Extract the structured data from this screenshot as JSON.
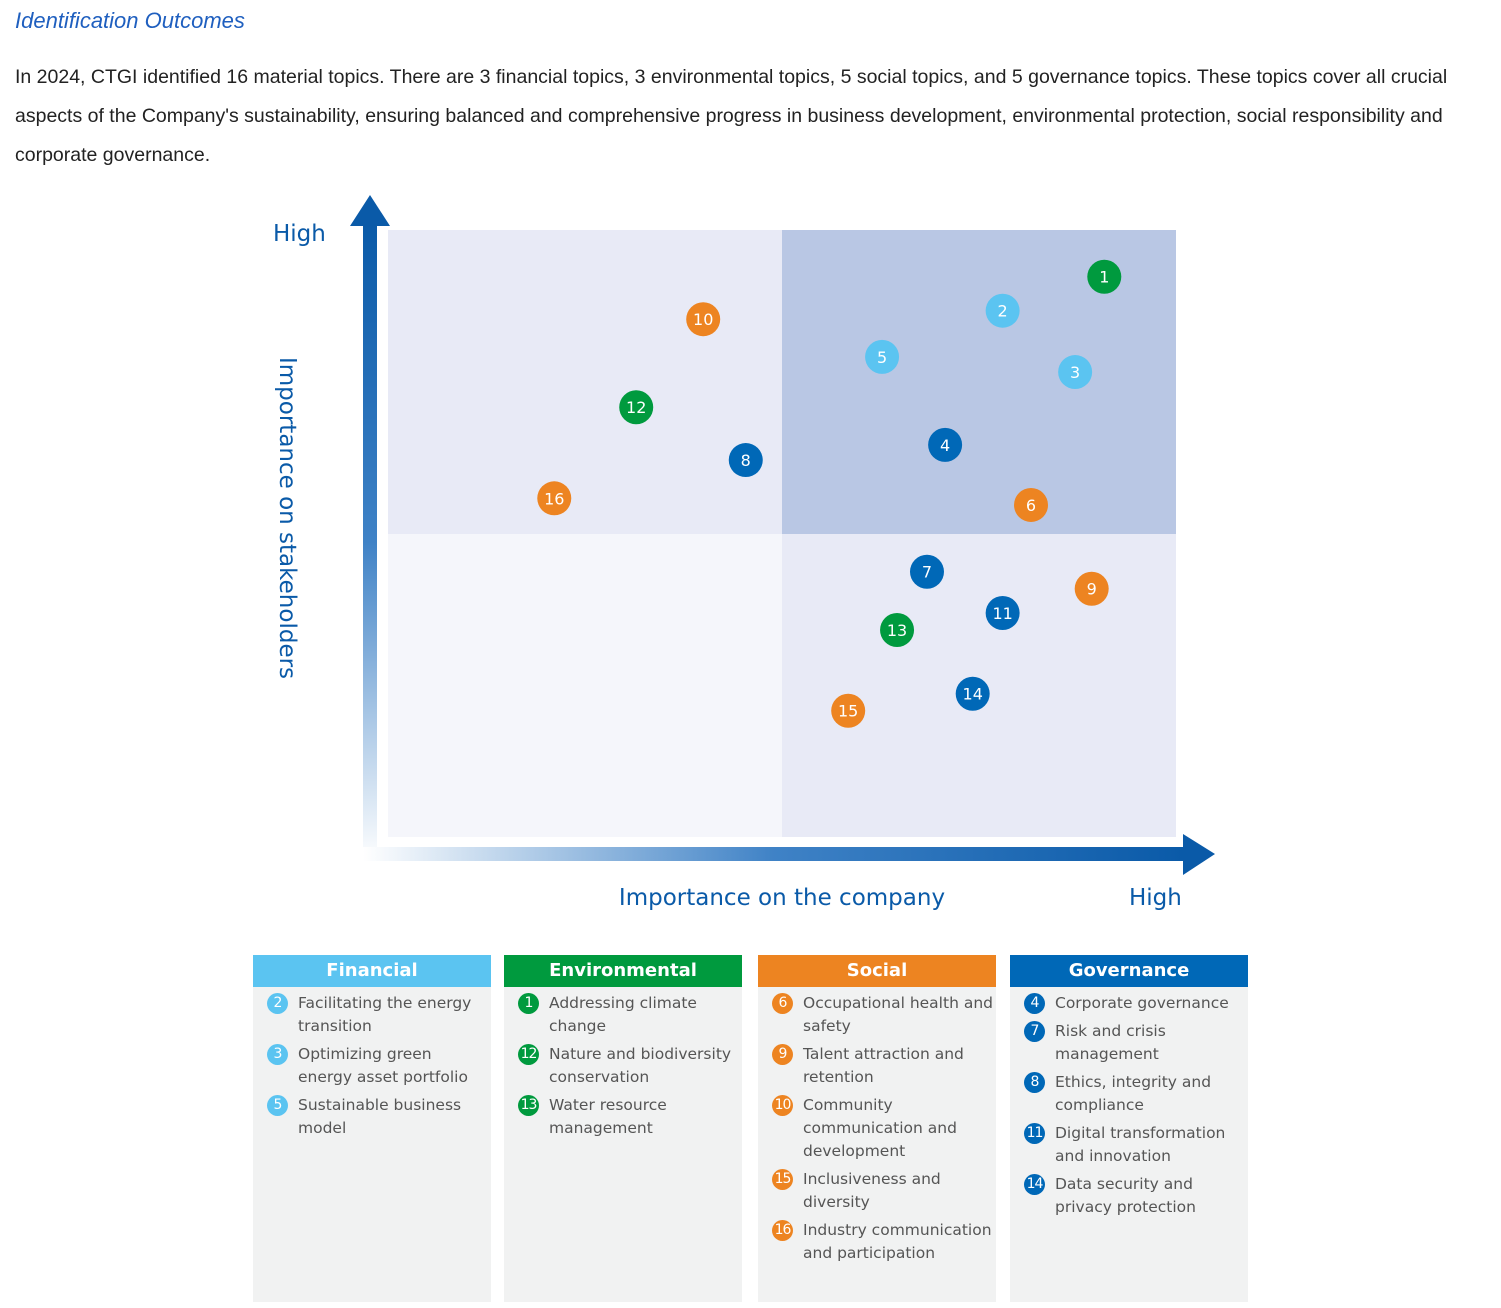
{
  "heading": "Identification Outcomes",
  "intro": "In 2024, CTGI identified 16 material topics. There are 3 financial topics, 3 environmental topics, 5 social topics, and 5 governance topics. These topics cover all crucial aspects of the Company's sustainability, ensuring balanced and comprehensive progress in business development, environmental protection, social responsibility and corporate governance.",
  "colors": {
    "financial": "#5bc4f1",
    "environmental": "#009a3e",
    "social": "#ed8421",
    "governance": "#0068b7",
    "axis": "#0a5aa8"
  },
  "chart_data": {
    "type": "scatter",
    "xlabel": "Importance on the company",
    "ylabel": "Importance on stakeholders",
    "x_high_label": "High",
    "y_high_label": "High",
    "xlim": [
      0,
      100
    ],
    "ylim": [
      0,
      100
    ],
    "grid": false,
    "quadrants": true,
    "points": [
      {
        "id": "1",
        "category": "environmental",
        "x": 90.9,
        "y": 92.3
      },
      {
        "id": "2",
        "category": "financial",
        "x": 78.0,
        "y": 86.7
      },
      {
        "id": "3",
        "category": "financial",
        "x": 87.2,
        "y": 76.6
      },
      {
        "id": "4",
        "category": "governance",
        "x": 70.7,
        "y": 64.6
      },
      {
        "id": "5",
        "category": "financial",
        "x": 62.7,
        "y": 79.1
      },
      {
        "id": "6",
        "category": "social",
        "x": 81.6,
        "y": 54.7
      },
      {
        "id": "7",
        "category": "governance",
        "x": 68.4,
        "y": 43.7
      },
      {
        "id": "8",
        "category": "governance",
        "x": 45.4,
        "y": 62.1
      },
      {
        "id": "9",
        "category": "social",
        "x": 89.3,
        "y": 40.9
      },
      {
        "id": "10",
        "category": "social",
        "x": 40.0,
        "y": 85.3
      },
      {
        "id": "11",
        "category": "governance",
        "x": 78.0,
        "y": 36.9
      },
      {
        "id": "12",
        "category": "environmental",
        "x": 31.5,
        "y": 70.8
      },
      {
        "id": "13",
        "category": "environmental",
        "x": 64.6,
        "y": 34.1
      },
      {
        "id": "14",
        "category": "governance",
        "x": 74.2,
        "y": 23.6
      },
      {
        "id": "15",
        "category": "social",
        "x": 58.4,
        "y": 20.8
      },
      {
        "id": "16",
        "category": "social",
        "x": 21.1,
        "y": 55.8
      }
    ]
  },
  "legend": [
    {
      "key": "financial",
      "title": "Financial",
      "items": [
        {
          "id": "2",
          "label": "Facilitating the energy transition"
        },
        {
          "id": "3",
          "label": "Optimizing green energy asset portfolio"
        },
        {
          "id": "5",
          "label": "Sustainable business model"
        }
      ]
    },
    {
      "key": "environmental",
      "title": "Environmental",
      "items": [
        {
          "id": "1",
          "label": "Addressing climate change"
        },
        {
          "id": "12",
          "label": "Nature and biodiversity conservation"
        },
        {
          "id": "13",
          "label": "Water resource management"
        }
      ]
    },
    {
      "key": "social",
      "title": "Social",
      "items": [
        {
          "id": "6",
          "label": "Occupational health and safety"
        },
        {
          "id": "9",
          "label": "Talent attraction and retention"
        },
        {
          "id": "10",
          "label": "Community communication and development"
        },
        {
          "id": "15",
          "label": "Inclusiveness and diversity"
        },
        {
          "id": "16",
          "label": "Industry communication and participation"
        }
      ]
    },
    {
      "key": "governance",
      "title": "Governance",
      "items": [
        {
          "id": "4",
          "label": "Corporate governance"
        },
        {
          "id": "7",
          "label": "Risk and crisis management"
        },
        {
          "id": "8",
          "label": "Ethics, integrity and compliance"
        },
        {
          "id": "11",
          "label": "Digital transformation and innovation"
        },
        {
          "id": "14",
          "label": "Data security and privacy protection"
        }
      ]
    }
  ]
}
